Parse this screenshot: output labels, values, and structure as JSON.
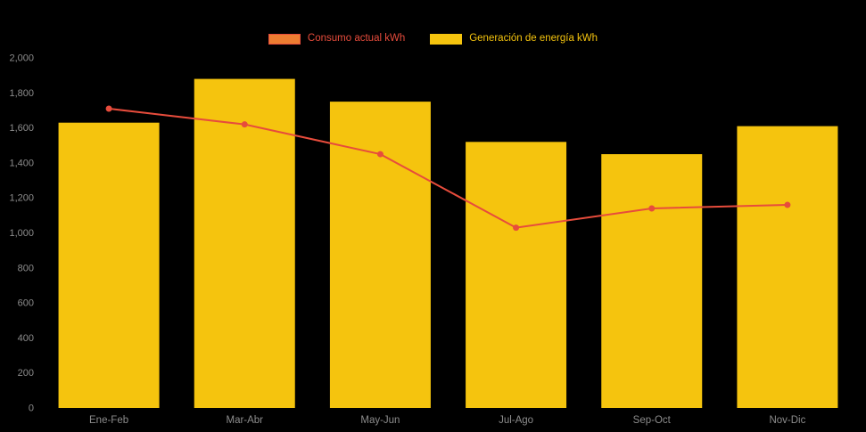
{
  "chart_data": {
    "type": "bar",
    "subtype": "bar+line combo",
    "title": "",
    "categories": [
      "Ene-Feb",
      "Mar-Abr",
      "May-Jun",
      "Jul-Ago",
      "Sep-Oct",
      "Nov-Dic"
    ],
    "series": [
      {
        "name": "Consumo actual kWh",
        "type": "line",
        "color": "#e74c3c",
        "swatch_fill": "#ed7d31",
        "swatch_border": "#e74c3c",
        "label_color": "#e74c3c",
        "values": [
          1710,
          1620,
          1450,
          1030,
          1140,
          1160
        ]
      },
      {
        "name": "Generación de energía kWh",
        "type": "bar",
        "color": "#f5c40e",
        "swatch_fill": "#f5c40e",
        "label_color": "#f5c40e",
        "values": [
          1630,
          1880,
          1750,
          1520,
          1450,
          1610
        ]
      }
    ],
    "xlabel": "",
    "ylabel": "",
    "ylim": [
      0,
      2000
    ],
    "ytick_step": 200,
    "ytick_labels": [
      "0",
      "200",
      "400",
      "600",
      "800",
      "1,000",
      "1,200",
      "1,400",
      "1,600",
      "1,800",
      "2,000"
    ],
    "grid": false,
    "legend_position": "top",
    "background_color": "#000000",
    "axis_label_color": "#8c8c8c"
  }
}
